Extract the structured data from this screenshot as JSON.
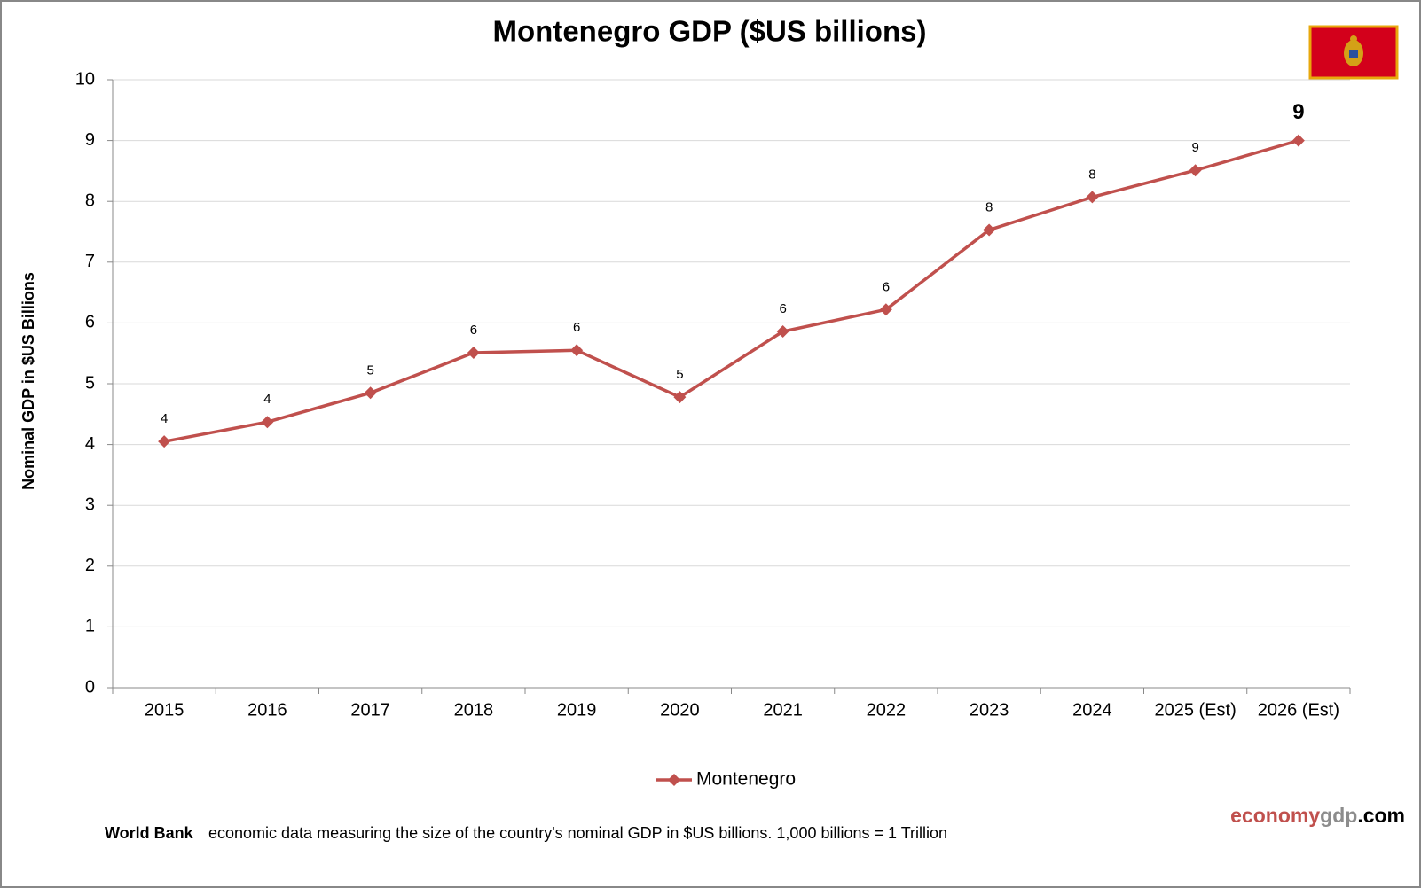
{
  "chart_data": {
    "type": "line",
    "title": "Montenegro GDP ($US billions)",
    "y_label": "Nominal GDP in $US Billions",
    "categories": [
      "2015",
      "2016",
      "2017",
      "2018",
      "2019",
      "2020",
      "2021",
      "2022",
      "2023",
      "2024",
      "2025 (Est)",
      "2026 (Est)"
    ],
    "series": [
      {
        "name": "Montenegro",
        "color": "#c0504d",
        "values": [
          4.05,
          4.37,
          4.85,
          5.51,
          5.55,
          4.78,
          5.86,
          6.22,
          7.53,
          8.07,
          8.51,
          9.0
        ],
        "value_labels": [
          "4",
          "4",
          "5",
          "6",
          "6",
          "5",
          "6",
          "6",
          "8",
          "8",
          "9",
          "9"
        ]
      }
    ],
    "ylim": [
      0,
      10
    ],
    "yticks": [
      0,
      1,
      2,
      3,
      4,
      5,
      6,
      7,
      8,
      9,
      10
    ],
    "grid": true,
    "legend": "bottom"
  },
  "footer": {
    "source": "World Bank",
    "text": "economic data  measuring  the size of the country's nominal  GDP in $US billions.  1,000 billions = 1 Trillion"
  },
  "brand": [
    "economy",
    "gdp",
    ".com"
  ]
}
